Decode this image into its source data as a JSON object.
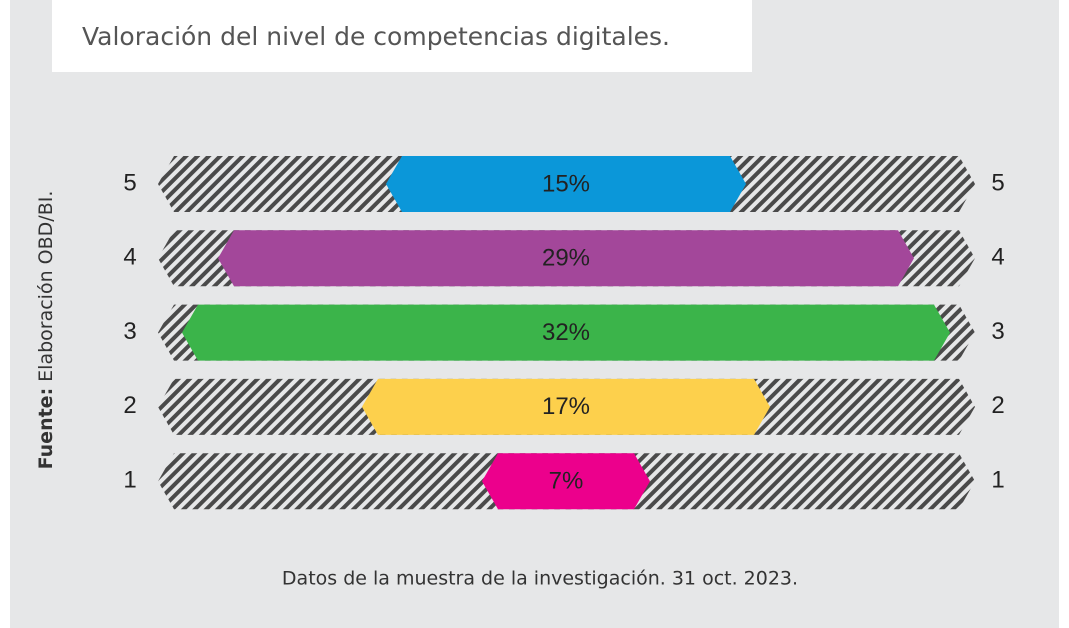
{
  "chart_data": {
    "type": "bar",
    "title": "Valoración del nivel de competencias digitales.",
    "source_label": "Fuente:",
    "source": "Elaboración OBD/BI.",
    "caption": "Datos de la muestra de la investigación. 31 oct. 2023.",
    "categories": [
      "5",
      "4",
      "3",
      "2",
      "1"
    ],
    "values": [
      15,
      29,
      32,
      17,
      7
    ],
    "value_labels": [
      "15%",
      "29%",
      "32%",
      "17%",
      "7%"
    ],
    "colors": [
      "#0b97d9",
      "#a3479a",
      "#3bb44a",
      "#fdd04c",
      "#ec008c"
    ]
  }
}
